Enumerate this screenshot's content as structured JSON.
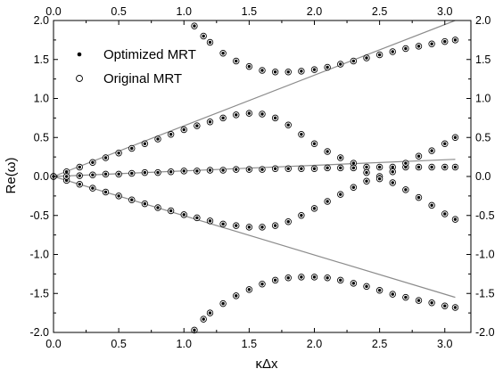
{
  "chart_data": {
    "type": "scatter",
    "title": "",
    "xlabel": "κΔx",
    "ylabel": "Re(ω)",
    "xlim": [
      0.0,
      3.2
    ],
    "ylim": [
      -2.0,
      2.0
    ],
    "x_ticks": [
      "0.0",
      "0.5",
      "1.0",
      "1.5",
      "2.0",
      "2.5",
      "3.0"
    ],
    "y_ticks": [
      "2.0",
      "1.5",
      "1.0",
      "0.5",
      "0.0",
      "-0.5",
      "-1.0",
      "-1.5",
      "-2.0"
    ],
    "grid": false,
    "legend": {
      "position": "top-left",
      "entries": [
        "Optimized MRT",
        "Original MRT"
      ]
    },
    "reference_lines": {
      "color": "#8c8c8c",
      "lines": [
        {
          "x": [
            0.0,
            3.08
          ],
          "y": [
            0.0,
            2.0
          ]
        },
        {
          "x": [
            0.0,
            3.08
          ],
          "y": [
            0.0,
            -1.55
          ]
        },
        {
          "x": [
            0.0,
            3.08
          ],
          "y": [
            0.0,
            0.22
          ]
        }
      ]
    },
    "series": [
      {
        "name": "Optimized MRT",
        "marker": "filled-dot",
        "branches": [
          {
            "x": [
              0.0,
              0.1,
              0.2,
              0.3,
              0.4,
              0.5,
              0.6,
              0.7,
              0.8,
              0.9,
              1.0,
              1.1,
              1.2,
              1.3,
              1.4,
              1.5,
              1.6,
              1.7,
              1.8,
              1.9,
              2.0,
              2.1,
              2.2,
              2.3,
              2.4,
              2.5,
              2.6,
              2.7,
              2.8,
              2.9,
              3.0,
              3.08
            ],
            "y": [
              0.0,
              0.06,
              0.12,
              0.18,
              0.24,
              0.3,
              0.36,
              0.42,
              0.48,
              0.54,
              0.6,
              0.65,
              0.7,
              0.75,
              0.79,
              0.81,
              0.8,
              0.75,
              0.66,
              0.54,
              0.42,
              0.32,
              0.24,
              0.17,
              0.12,
              0.12,
              0.12,
              0.12,
              0.12,
              0.12,
              0.12,
              0.12
            ]
          },
          {
            "x": [
              0.0,
              0.1,
              0.2,
              0.3,
              0.4,
              0.5,
              0.6,
              0.7,
              0.8,
              0.9,
              1.0,
              1.1,
              1.2,
              1.3,
              1.4,
              1.5,
              1.6,
              1.7,
              1.8,
              1.9,
              2.0,
              2.1,
              2.2,
              2.3,
              2.4,
              2.5,
              2.6,
              2.7,
              2.8,
              2.9,
              3.0,
              3.08
            ],
            "y": [
              0.0,
              -0.05,
              -0.1,
              -0.15,
              -0.2,
              -0.25,
              -0.3,
              -0.35,
              -0.4,
              -0.44,
              -0.49,
              -0.53,
              -0.57,
              -0.61,
              -0.63,
              -0.65,
              -0.65,
              -0.63,
              -0.58,
              -0.5,
              -0.41,
              -0.32,
              -0.23,
              -0.14,
              -0.06,
              0.0,
              -0.08,
              -0.17,
              -0.27,
              -0.37,
              -0.48,
              -0.55
            ]
          },
          {
            "x": [
              0.0,
              0.1,
              0.2,
              0.3,
              0.4,
              0.5,
              0.6,
              0.7,
              0.8,
              0.9,
              1.0,
              1.1,
              1.2,
              1.3,
              1.4,
              1.5,
              1.6,
              1.7,
              1.8,
              1.9,
              2.0,
              2.1,
              2.2,
              2.3,
              2.4,
              2.5,
              2.6,
              2.7,
              2.8,
              2.9,
              3.0,
              3.08
            ],
            "y": [
              0.0,
              0.0,
              0.01,
              0.02,
              0.03,
              0.03,
              0.04,
              0.05,
              0.05,
              0.06,
              0.07,
              0.07,
              0.08,
              0.08,
              0.09,
              0.09,
              0.09,
              0.1,
              0.1,
              0.1,
              0.1,
              0.11,
              0.11,
              0.11,
              0.05,
              -0.03,
              0.06,
              0.17,
              0.26,
              0.33,
              0.42,
              0.5
            ]
          },
          {
            "x": [
              1.08,
              1.15,
              1.2,
              1.3,
              1.4,
              1.5,
              1.6,
              1.7,
              1.8,
              1.9,
              2.0,
              2.1,
              2.2,
              2.3,
              2.4,
              2.5,
              2.6,
              2.7,
              2.8,
              2.9,
              3.0,
              3.08
            ],
            "y": [
              1.93,
              1.8,
              1.72,
              1.58,
              1.48,
              1.41,
              1.36,
              1.34,
              1.34,
              1.35,
              1.37,
              1.4,
              1.44,
              1.48,
              1.52,
              1.56,
              1.6,
              1.64,
              1.67,
              1.7,
              1.73,
              1.75
            ]
          },
          {
            "x": [
              1.08,
              1.15,
              1.2,
              1.3,
              1.4,
              1.5,
              1.6,
              1.7,
              1.8,
              1.9,
              2.0,
              2.1,
              2.2,
              2.3,
              2.4,
              2.5,
              2.6,
              2.7,
              2.8,
              2.9,
              3.0,
              3.08
            ],
            "y": [
              -1.97,
              -1.83,
              -1.75,
              -1.63,
              -1.53,
              -1.45,
              -1.38,
              -1.33,
              -1.3,
              -1.29,
              -1.29,
              -1.3,
              -1.33,
              -1.37,
              -1.41,
              -1.46,
              -1.51,
              -1.55,
              -1.59,
              -1.62,
              -1.66,
              -1.68
            ]
          }
        ]
      },
      {
        "name": "Original MRT",
        "marker": "open-circle",
        "same_as": "Optimized MRT"
      }
    ]
  }
}
